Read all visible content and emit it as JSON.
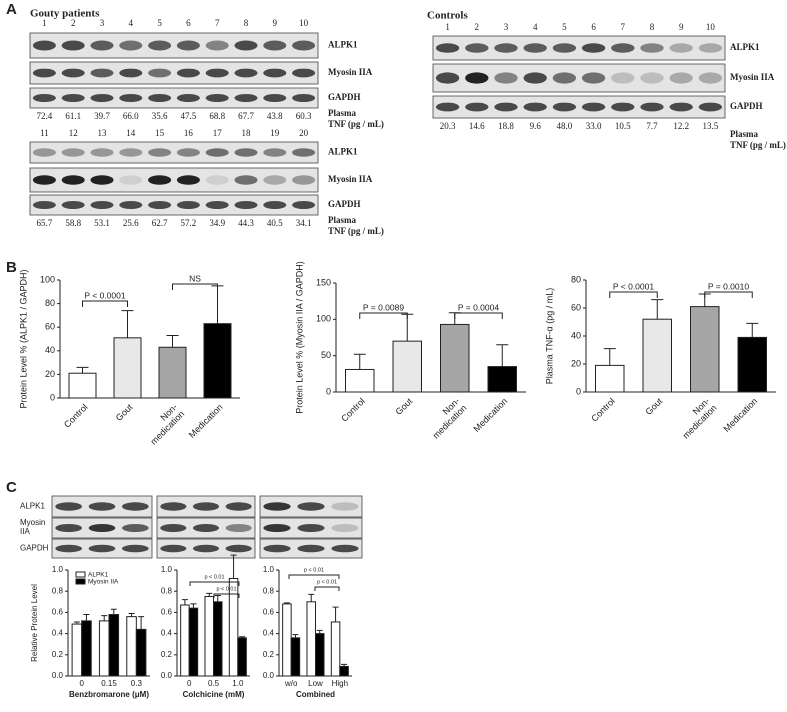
{
  "panel_labels": [
    "A",
    "B",
    "C"
  ],
  "blots_a": {
    "gout_title": "Gouty patients",
    "control_title": "Controls",
    "rows": [
      "ALPK1",
      "Myosin IIA",
      "GAPDH"
    ],
    "lanes_1": [
      1,
      2,
      3,
      4,
      5,
      6,
      7,
      8,
      9,
      10
    ],
    "lanes_2": [
      11,
      12,
      13,
      14,
      15,
      16,
      17,
      18,
      19,
      20
    ],
    "control_lanes": [
      1,
      2,
      3,
      4,
      5,
      6,
      7,
      8,
      9,
      10
    ],
    "tnf_1": [
      "72.4",
      "61.1",
      "39.7",
      "66.0",
      "35.6",
      "47.5",
      "68.8",
      "67.7",
      "43.8",
      "60.3"
    ],
    "tnf_2": [
      "65.7",
      "58.8",
      "53.1",
      "25.6",
      "62.7",
      "57.2",
      "34.9",
      "44.3",
      "40.5",
      "34.1"
    ],
    "tnf_control": [
      "20.3",
      "14.6",
      "18.8",
      "9.6",
      "48.0",
      "33.0",
      "10.5",
      "7.7",
      "12.2",
      "13.5"
    ],
    "tnf_label": [
      "Plasma",
      "TNF (pg / mL)"
    ]
  },
  "blots_c": {
    "rows": [
      "ALPK1",
      "Myosin IIA",
      "GAPDH"
    ]
  },
  "chart_data": [
    {
      "type": "bar",
      "ylabel": "Protein Level % (ALPK1 / GAPDH)",
      "categories": [
        "Control",
        "Gout",
        "Non-\nmedication",
        "Medication"
      ],
      "values": [
        21,
        51,
        43,
        63
      ],
      "errors": [
        5,
        23,
        10,
        32
      ],
      "colors": [
        "#ffffff",
        "#e8e8e8",
        "#a6a6a6",
        "#000000"
      ],
      "ylim": [
        0,
        100
      ],
      "yticks": [
        0,
        20,
        40,
        60,
        80,
        100
      ],
      "annotations": [
        "P < 0.0001",
        "NS"
      ]
    },
    {
      "type": "bar",
      "ylabel": "Protein Level % (Myosin IIA / GAPDH)",
      "categories": [
        "Control",
        "Gout",
        "Non-\nmedication",
        "Medication"
      ],
      "values": [
        31,
        70,
        93,
        35
      ],
      "errors": [
        21,
        37,
        16,
        30
      ],
      "colors": [
        "#ffffff",
        "#e8e8e8",
        "#a6a6a6",
        "#000000"
      ],
      "ylim": [
        0,
        150
      ],
      "yticks": [
        0,
        50,
        100,
        150
      ],
      "annotations": [
        "P = 0.0089",
        "P = 0.0004"
      ]
    },
    {
      "type": "bar",
      "ylabel": "Plasma TNF-α (pg / mL)",
      "categories": [
        "Control",
        "Gout",
        "Non-\nmedication",
        "Medication"
      ],
      "values": [
        19,
        52,
        61,
        39
      ],
      "errors": [
        12,
        14,
        9,
        10
      ],
      "colors": [
        "#ffffff",
        "#e8e8e8",
        "#a6a6a6",
        "#000000"
      ],
      "ylim": [
        0,
        80
      ],
      "yticks": [
        0,
        20,
        40,
        60,
        80
      ],
      "annotations": [
        "P < 0.0001",
        "P = 0.0010"
      ]
    },
    {
      "type": "bar",
      "ylabel": "Relative Protein Level",
      "xlabel": "Benzbromarone (μM)",
      "categories": [
        "0",
        "0.15",
        "0.3"
      ],
      "series": [
        {
          "name": "ALPK1",
          "color": "#ffffff",
          "values": [
            0.49,
            0.52,
            0.56
          ],
          "errors": [
            0.02,
            0.05,
            0.03
          ]
        },
        {
          "name": "Myosin IIA",
          "color": "#000000",
          "values": [
            0.52,
            0.58,
            0.44
          ],
          "errors": [
            0.06,
            0.05,
            0.12
          ]
        }
      ],
      "ylim": [
        0,
        1
      ],
      "yticks": [
        {
          "value": 0,
          "label": "0.0"
        },
        0.2,
        0.4,
        0.6,
        0.8,
        {
          "value": 1,
          "label": "1.0"
        }
      ],
      "legend": "upper left"
    },
    {
      "type": "bar",
      "xlabel": "Colchicine (mM)",
      "categories": [
        "0",
        "0.5",
        "1.0"
      ],
      "series": [
        {
          "name": "ALPK1",
          "color": "#ffffff",
          "values": [
            0.67,
            0.75,
            0.92
          ],
          "errors": [
            0.05,
            0.03,
            0.22
          ]
        },
        {
          "name": "Myosin IIA",
          "color": "#000000",
          "values": [
            0.64,
            0.7,
            0.36
          ],
          "errors": [
            0.04,
            0.06,
            0.01
          ]
        }
      ],
      "ylim": [
        0,
        1
      ],
      "yticks": [
        {
          "value": 0,
          "label": "0.0"
        },
        0.2,
        0.4,
        0.6,
        0.8,
        {
          "value": 1,
          "label": "1.0"
        }
      ],
      "annotations": [
        "p < 0.01",
        "p < 0.01"
      ]
    },
    {
      "type": "bar",
      "xlabel": "Combined",
      "categories": [
        "w/o",
        "Low",
        "High"
      ],
      "series": [
        {
          "name": "ALPK1",
          "color": "#ffffff",
          "values": [
            0.68,
            0.7,
            0.51
          ],
          "errors": [
            0.01,
            0.07,
            0.14
          ]
        },
        {
          "name": "Myosin IIA",
          "color": "#000000",
          "values": [
            0.36,
            0.4,
            0.09
          ],
          "errors": [
            0.03,
            0.03,
            0.02
          ]
        }
      ],
      "ylim": [
        0,
        1
      ],
      "yticks": [
        {
          "value": 0,
          "label": "0.0"
        },
        0.2,
        0.4,
        0.6,
        0.8,
        {
          "value": 1,
          "label": "1.0"
        }
      ],
      "annotations": [
        "p < 0.01",
        "p < 0.01"
      ]
    }
  ]
}
